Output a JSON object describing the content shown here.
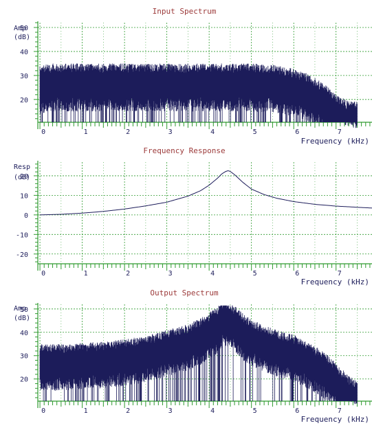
{
  "colors": {
    "title": "#9c3a3a",
    "axis_text": "#1c1c5a",
    "grid": "#2e9a2e",
    "axis": "#2e9a2e",
    "trace": "#1c1c5a",
    "background": "#ffffff"
  },
  "chart_data": [
    {
      "type": "line",
      "title": "Input Spectrum",
      "xlabel": "Frequency (kHz)",
      "ylabel": "Amp",
      "yunit": "(dB)",
      "xlim": [
        -0.05,
        7.85
      ],
      "ylim": [
        10.5,
        52
      ],
      "x_ticks": [
        0,
        1,
        2,
        3,
        4,
        5,
        6,
        7
      ],
      "x_tick_labels": [
        "0",
        "1",
        "2",
        "3",
        "4",
        "5",
        "6",
        "7"
      ],
      "y_ticks": [
        20,
        30,
        40,
        50
      ],
      "y_tick_labels": [
        "20",
        "30",
        "40",
        "50"
      ],
      "grid": true,
      "series": [
        {
          "style": "noisy-spectrum",
          "x": [
            0,
            0.25,
            0.5,
            1.0,
            1.5,
            2.0,
            2.5,
            3.0,
            3.5,
            4.0,
            4.5,
            5.0,
            5.5,
            6.0,
            6.3,
            6.6,
            6.9,
            7.1,
            7.3,
            7.5
          ],
          "y": [
            26,
            27,
            27,
            27,
            27,
            27,
            27,
            27,
            27,
            27,
            27,
            27,
            26.5,
            25,
            23,
            20,
            16,
            13,
            11.5,
            11
          ]
        }
      ]
    },
    {
      "type": "line",
      "title": "Frequency Response",
      "xlabel": "Frequency (kHz)",
      "ylabel": "Resp",
      "yunit": "(dB)",
      "xlim": [
        -0.05,
        7.85
      ],
      "ylim": [
        -25,
        27
      ],
      "x_ticks": [
        0,
        1,
        2,
        3,
        4,
        5,
        6,
        7
      ],
      "x_tick_labels": [
        "0",
        "1",
        "2",
        "3",
        "4",
        "5",
        "6",
        "7"
      ],
      "y_ticks": [
        -20,
        -10,
        0,
        10,
        20
      ],
      "y_tick_labels": [
        "-20",
        "-10",
        "0",
        "10",
        "20"
      ],
      "grid": true,
      "series": [
        {
          "style": "smooth",
          "x": [
            0,
            0.5,
            1.0,
            1.5,
            2.0,
            2.5,
            3.0,
            3.5,
            3.8,
            4.0,
            4.2,
            4.3,
            4.4,
            4.45,
            4.5,
            4.6,
            4.8,
            5.0,
            5.3,
            5.6,
            6.0,
            6.5,
            7.0,
            7.5,
            7.85
          ],
          "y": [
            0,
            0.3,
            0.9,
            1.8,
            3.0,
            4.6,
            6.5,
            9.6,
            12.4,
            15.2,
            18.8,
            21.0,
            22.3,
            22.6,
            22.2,
            20.6,
            16.6,
            13.2,
            10.4,
            8.5,
            6.8,
            5.4,
            4.5,
            3.9,
            3.5
          ]
        }
      ]
    },
    {
      "type": "line",
      "title": "Output Spectrum",
      "xlabel": "Frequency (kHz)",
      "ylabel": "Amp",
      "yunit": "(dB)",
      "xlim": [
        -0.05,
        7.85
      ],
      "ylim": [
        10.5,
        52
      ],
      "x_ticks": [
        0,
        1,
        2,
        3,
        4,
        5,
        6,
        7
      ],
      "x_tick_labels": [
        "0",
        "1",
        "2",
        "3",
        "4",
        "5",
        "6",
        "7"
      ],
      "y_ticks": [
        20,
        30,
        40,
        50
      ],
      "y_tick_labels": [
        "20",
        "30",
        "40",
        "50"
      ],
      "grid": true,
      "series": [
        {
          "style": "noisy-spectrum",
          "x": [
            0,
            0.5,
            1.0,
            1.5,
            2.0,
            2.5,
            3.0,
            3.5,
            3.8,
            4.0,
            4.2,
            4.3,
            4.4,
            4.5,
            4.6,
            4.8,
            5.0,
            5.3,
            5.6,
            6.0,
            6.3,
            6.6,
            6.9,
            7.1,
            7.3,
            7.5
          ],
          "y": [
            27,
            27,
            27.5,
            28,
            29,
            30.5,
            33,
            35.5,
            38,
            40.5,
            43,
            45,
            46,
            45,
            43.5,
            40,
            37.5,
            35,
            33,
            31,
            28,
            25,
            21,
            17,
            13.5,
            11.5
          ]
        }
      ]
    }
  ]
}
